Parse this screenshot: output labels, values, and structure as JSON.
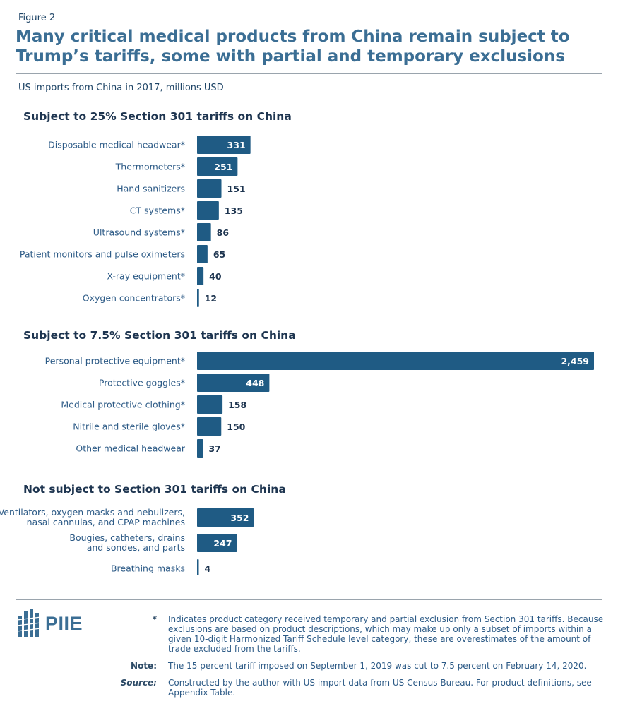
{
  "figure_label": "Figure 2",
  "title": "Many critical medical products from China remain subject to Trump’s tariffs, some with partial and temporary exclusions",
  "subtitle": "US imports from China in 2017, millions USD",
  "colors": {
    "bar": "#1f5b84",
    "title": "#3b6e94",
    "label": "#2c5a86"
  },
  "chart_data": {
    "type": "bar",
    "orientation": "horizontal",
    "xlabel": "",
    "ylabel": "",
    "groups": [
      {
        "title": "Subject to 25% Section 301 tariffs on China",
        "bars": [
          {
            "label": "Disposable medical headwear*",
            "value": 331,
            "value_label": "331"
          },
          {
            "label": "Thermometers*",
            "value": 251,
            "value_label": "251"
          },
          {
            "label": "Hand sanitizers",
            "value": 151,
            "value_label": "151"
          },
          {
            "label": "CT systems*",
            "value": 135,
            "value_label": "135"
          },
          {
            "label": "Ultrasound systems*",
            "value": 86,
            "value_label": "86"
          },
          {
            "label": "Patient monitors and pulse oximeters",
            "value": 65,
            "value_label": "65"
          },
          {
            "label": "X-ray equipment*",
            "value": 40,
            "value_label": "40"
          },
          {
            "label": "Oxygen concentrators*",
            "value": 12,
            "value_label": "12"
          }
        ]
      },
      {
        "title": "Subject to 7.5% Section 301 tariffs on China",
        "bars": [
          {
            "label": "Personal protective equipment*",
            "value": 2459,
            "value_label": "2,459"
          },
          {
            "label": "Protective goggles*",
            "value": 448,
            "value_label": "448"
          },
          {
            "label": "Medical protective clothing*",
            "value": 158,
            "value_label": "158"
          },
          {
            "label": "Nitrile and sterile gloves*",
            "value": 150,
            "value_label": "150"
          },
          {
            "label": "Other medical headwear",
            "value": 37,
            "value_label": "37"
          }
        ]
      },
      {
        "title": "Not subject to Section 301 tariffs on China",
        "bars": [
          {
            "label": "Ventilators, oxygen masks and nebulizers,\nnasal cannulas, and CPAP machines",
            "value": 352,
            "value_label": "352"
          },
          {
            "label": "Bougies, catheters, drains\nand sondes, and parts",
            "value": 247,
            "value_label": "247"
          },
          {
            "label": "Breathing masks",
            "value": 4,
            "value_label": "4"
          }
        ]
      }
    ]
  },
  "logo": {
    "text": "PIIE",
    "icon": "piie-building-icon"
  },
  "notes": [
    {
      "key": "*",
      "text": "Indicates product category received temporary and partial exclusion from Section 301 tariffs. Because exclusions are based on product descriptions, which may make up only a subset of imports within a given 10-digit Harmonized Tariff Schedule level category, these are overestimates of the amount of trade excluded from the tariffs."
    },
    {
      "key": "Note:",
      "text": "The 15 percent tariff imposed on September 1, 2019 was cut to 7.5 percent on February 14, 2020."
    },
    {
      "key": "Source:",
      "text": "Constructed by the author with US import data from US Census Bureau. For product definitions, see Appendix Table."
    }
  ]
}
